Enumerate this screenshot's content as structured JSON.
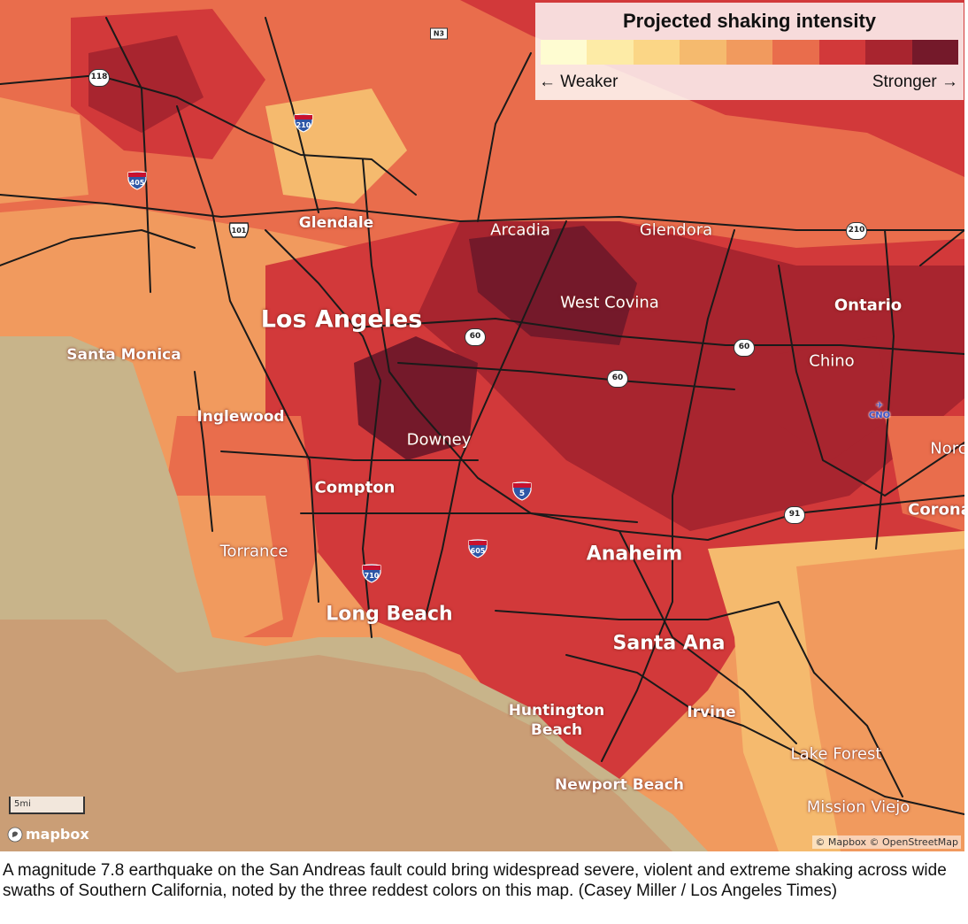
{
  "colors": {
    "ocean": "#c8b48a",
    "ocean_shallow": "#cc8c66",
    "scale": [
      "#fefcd1",
      "#fdeba6",
      "#fbd686",
      "#f5ba6e",
      "#f19a5e",
      "#e96d4c",
      "#d2393a",
      "#a8252f",
      "#74192a"
    ],
    "road": "#1a1a1a"
  },
  "legend": {
    "title": "Projected shaking intensity",
    "weaker": "← Weaker",
    "stronger": "Stronger →"
  },
  "places": {
    "los_angeles": "Los Angeles",
    "glendale": "Glendale",
    "arcadia": "Arcadia",
    "glendora": "Glendora",
    "west_covina": "West Covina",
    "ontario": "Ontario",
    "santa_monica": "Santa Monica",
    "chino": "Chino",
    "inglewood": "Inglewood",
    "downey": "Downey",
    "norco": "Norc",
    "compton": "Compton",
    "corona": "Corona",
    "torrance": "Torrance",
    "anaheim": "Anaheim",
    "long_beach": "Long Beach",
    "santa_ana": "Santa Ana",
    "huntington_beach": "Huntington Beach",
    "irvine": "Irvine",
    "lake_forest": "Lake Forest",
    "newport_beach": "Newport Beach",
    "mission_viejo": "Mission Viejo"
  },
  "shields": {
    "n3": "N3",
    "s118": "118",
    "i210_west": "210",
    "i405": "405",
    "us101": "101",
    "s210_east": "210",
    "s60_a": "60",
    "s60_b": "60",
    "s60_c": "60",
    "i5": "5",
    "s91": "91",
    "i605": "605",
    "i710": "710",
    "cno": "CNO"
  },
  "map_controls": {
    "scale": "5mi",
    "logo": "mapbox",
    "attribution": "© Mapbox © OpenStreetMap"
  },
  "caption": "A magnitude 7.8 earthquake on the San Andreas fault could bring widespread severe, violent and extreme shaking across wide swaths of Southern California, noted by the three reddest colors on this map. (Casey Miller / Los Angeles Times)"
}
